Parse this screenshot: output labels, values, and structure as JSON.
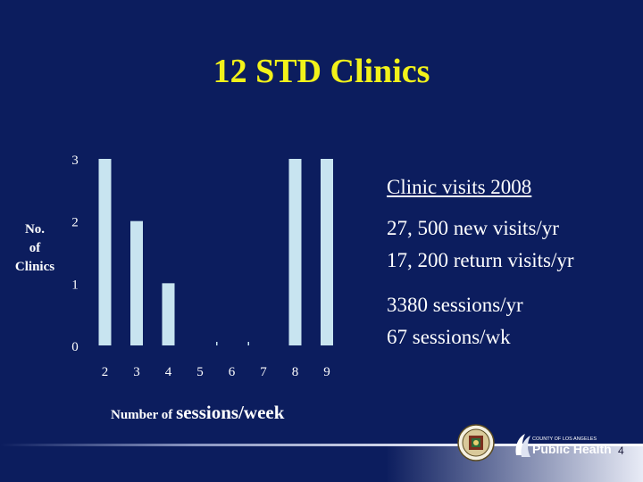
{
  "slide": {
    "title": "12 STD Clinics",
    "page_number": "4"
  },
  "axis": {
    "ylabel_lines": [
      "No.",
      "of",
      "Clinics"
    ],
    "xlabel_part1": "Number of ",
    "xlabel_part2": "sessions/week"
  },
  "stats": {
    "heading": "Clinic visits 2008",
    "visits": [
      "27, 500 new visits/yr",
      "17, 200 return visits/yr"
    ],
    "sessions": [
      "3380 sessions/yr",
      "67 sessions/wk"
    ]
  },
  "logo": {
    "org_line": "COUNTY OF LOS ANGELES",
    "name": "Public Health"
  },
  "chart_data": {
    "type": "bar",
    "categories": [
      "2",
      "3",
      "4",
      "5",
      "6",
      "7",
      "8",
      "9"
    ],
    "values": [
      3,
      2,
      1,
      0,
      0,
      0,
      3,
      3
    ],
    "title": "",
    "xlabel": "Number of sessions/week",
    "ylabel": "No. of Clinics",
    "ylim": [
      0,
      3
    ],
    "yticks": [
      0,
      1,
      2,
      3
    ],
    "grid": false,
    "legend": "none",
    "bar_color": "#c8e4f0",
    "background": "#0c1d5e"
  }
}
